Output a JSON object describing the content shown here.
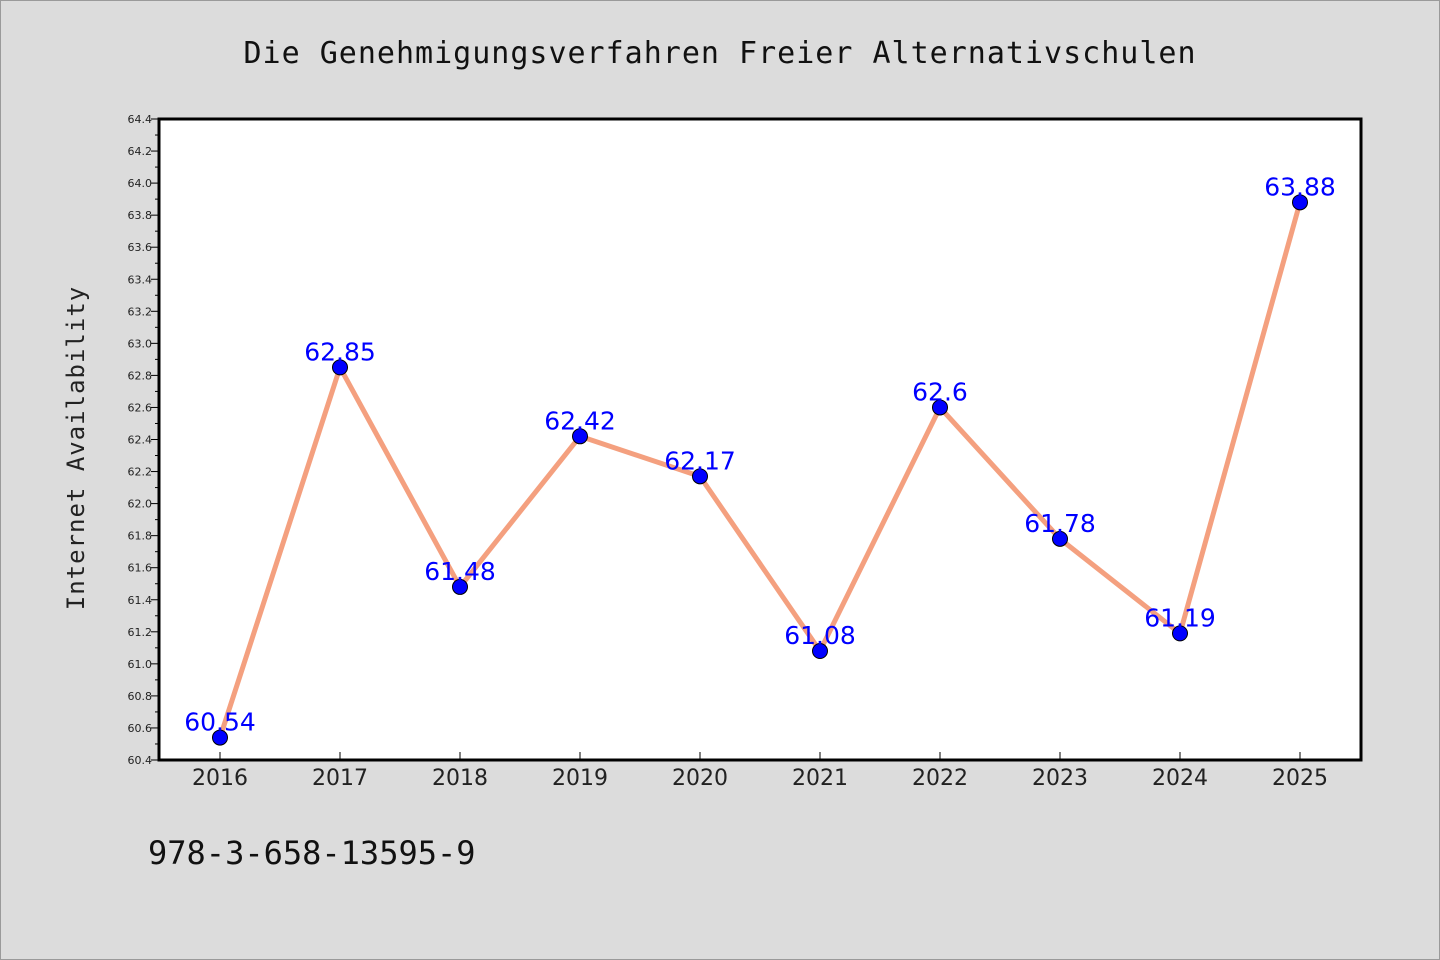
{
  "chart_data": {
    "type": "line",
    "title": "Die Genehmigungsverfahren Freier Alternativschulen",
    "xlabel": "",
    "ylabel": "Internet Availability",
    "categories": [
      "2016",
      "2017",
      "2018",
      "2019",
      "2020",
      "2021",
      "2022",
      "2023",
      "2024",
      "2025"
    ],
    "series": [
      {
        "values": [
          60.54,
          62.85,
          61.48,
          62.42,
          62.17,
          61.08,
          62.6,
          61.78,
          61.19,
          63.88
        ],
        "labels": [
          "60.54",
          "62.85",
          "61.48",
          "62.42",
          "62.17",
          "61.08",
          "62.6",
          "61.78",
          "61.19",
          "63.88"
        ],
        "line_color": "#f4a07f",
        "marker_color": "#0000ff"
      }
    ],
    "ylim": [
      60.4,
      64.4
    ],
    "yticks": [
      "60.4",
      "60.6",
      "60.8",
      "61.0",
      "61.2",
      "61.4",
      "61.6",
      "61.8",
      "62.0",
      "62.2",
      "62.4",
      "62.6",
      "62.8",
      "63.0",
      "63.2",
      "63.4",
      "63.6",
      "63.8",
      "64.0",
      "64.2",
      "64.4"
    ],
    "grid": false,
    "legend": "none"
  },
  "footer": {
    "isbn": "978-3-658-13595-9"
  },
  "colors": {
    "background": "#dcdcdc",
    "plot_background": "#ffffff",
    "line": "#f4a07f",
    "marker": "#0000ff",
    "data_label": "#0000ff"
  }
}
